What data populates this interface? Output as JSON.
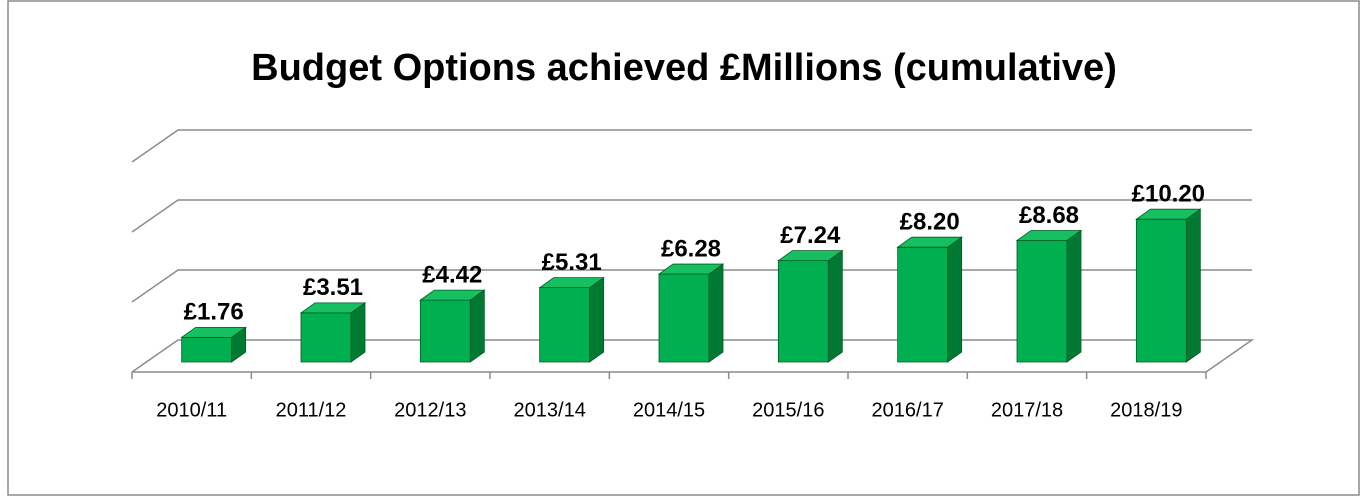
{
  "chart_data": {
    "type": "bar3d",
    "title": "Budget Options achieved £Millions (cumulative)",
    "categories": [
      "2010/11",
      "2011/12",
      "2012/13",
      "2013/14",
      "2014/15",
      "2015/16",
      "2016/17",
      "2017/18",
      "2018/19"
    ],
    "values": [
      1.76,
      3.51,
      4.42,
      5.31,
      6.28,
      7.24,
      8.2,
      8.68,
      10.2
    ],
    "value_labels": [
      "£1.76",
      "£3.51",
      "£4.42",
      "£5.31",
      "£6.28",
      "£7.24",
      "£8.20",
      "£8.68",
      "£10.20"
    ],
    "color": "#00b050",
    "ylim": [
      0,
      15
    ],
    "yticks": [
      0,
      5,
      10,
      15
    ],
    "grid": true
  }
}
